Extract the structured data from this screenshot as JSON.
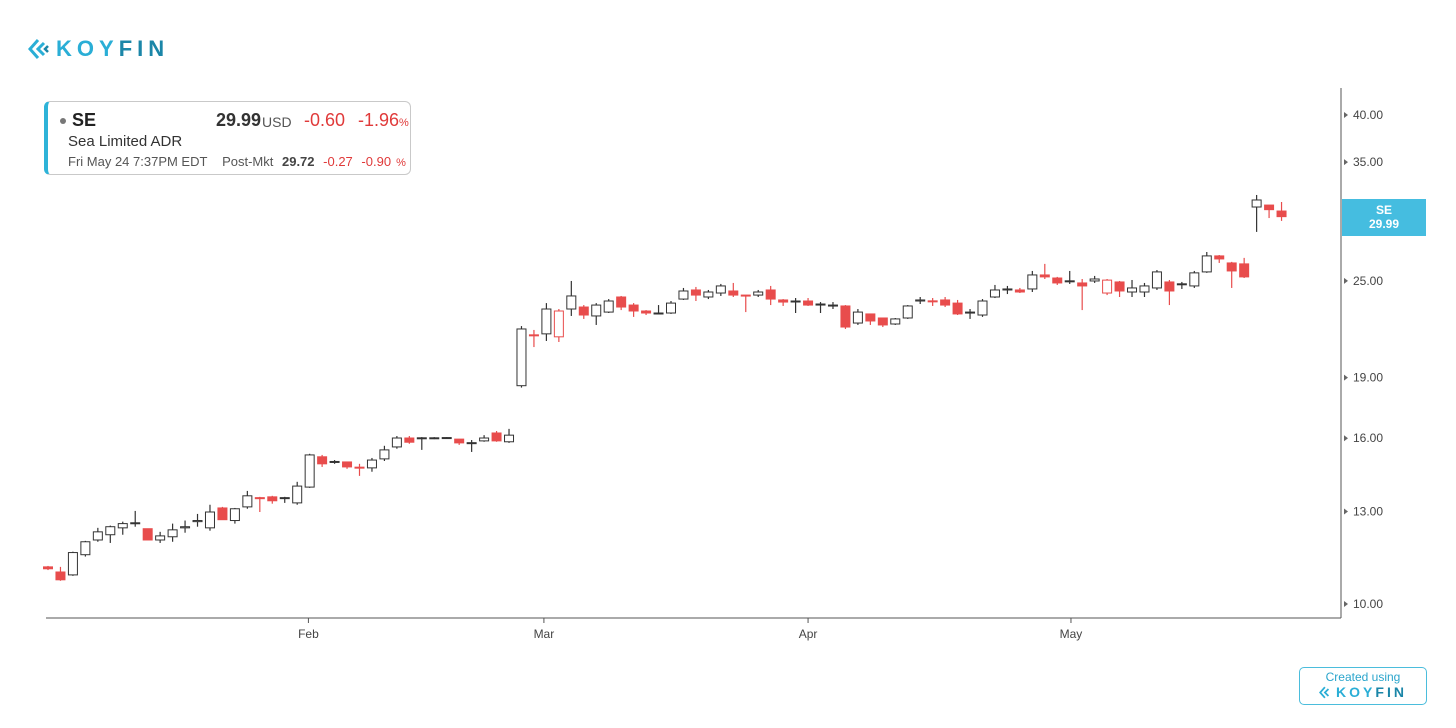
{
  "brand": {
    "logo_left": "KOY",
    "logo_right": "FIN"
  },
  "legend": {
    "ticker": "SE",
    "price": "29.99",
    "currency": "USD",
    "change": "-0.60",
    "change_pct": "-1.96",
    "pct_sign": "%",
    "name": "Sea Limited ADR",
    "datetime": "Fri May 24 7:37PM EDT",
    "post_label": "Post-Mkt",
    "post_price": "29.72",
    "post_change": "-0.27",
    "post_change_pct": "-0.90"
  },
  "badge": {
    "ticker": "SE",
    "price": "29.99"
  },
  "footer": {
    "created": "Created using",
    "logo_left": "KOY",
    "logo_right": "FIN"
  },
  "colors": {
    "up": "#333333",
    "down": "#e84c4c",
    "accent": "#45bde0"
  },
  "chart_data": {
    "type": "candlestick",
    "title": "SE",
    "yscale": "log",
    "ylim": [
      9.7,
      42
    ],
    "y_ticks": [
      "10.00",
      "13.00",
      "16.00",
      "19.00",
      "25.00",
      "30.00",
      "35.00",
      "40.00"
    ],
    "x_labels": [
      {
        "label": "Feb",
        "at_index": 20.9
      },
      {
        "label": "Mar",
        "at_index": 39.8
      },
      {
        "label": "Apr",
        "at_index": 61.0
      },
      {
        "label": "May",
        "at_index": 82.1
      }
    ],
    "ohlc_fields": [
      "open",
      "high",
      "low",
      "close"
    ],
    "candles": [
      [
        11.11,
        11.14,
        11.01,
        11.05
      ],
      [
        10.95,
        11.11,
        10.68,
        10.71
      ],
      [
        10.86,
        11.6,
        10.83,
        11.57
      ],
      [
        11.5,
        11.96,
        11.44,
        11.93
      ],
      [
        11.99,
        12.41,
        11.93,
        12.27
      ],
      [
        12.17,
        12.49,
        11.89,
        12.45
      ],
      [
        12.41,
        12.63,
        12.17,
        12.56
      ],
      [
        12.56,
        13.02,
        12.45,
        12.59
      ],
      [
        12.38,
        12.38,
        11.99,
        11.99
      ],
      [
        11.99,
        12.27,
        11.89,
        12.13
      ],
      [
        12.1,
        12.56,
        11.93,
        12.34
      ],
      [
        12.41,
        12.67,
        12.24,
        12.45
      ],
      [
        12.63,
        12.91,
        12.45,
        12.67
      ],
      [
        12.41,
        13.25,
        12.31,
        12.98
      ],
      [
        13.13,
        13.17,
        12.7,
        12.7
      ],
      [
        12.67,
        13.13,
        12.56,
        13.1
      ],
      [
        13.17,
        13.78,
        13.1,
        13.59
      ],
      [
        13.52,
        13.55,
        12.98,
        13.48
      ],
      [
        13.55,
        13.59,
        13.29,
        13.4
      ],
      [
        13.52,
        13.55,
        13.32,
        13.52
      ],
      [
        13.32,
        14.14,
        13.25,
        13.97
      ],
      [
        13.93,
        15.31,
        13.9,
        15.26
      ],
      [
        15.18,
        15.26,
        14.75,
        14.88
      ],
      [
        14.98,
        15.04,
        14.88,
        14.98
      ],
      [
        14.96,
        14.96,
        14.67,
        14.75
      ],
      [
        14.74,
        14.88,
        14.38,
        14.72
      ],
      [
        14.71,
        15.13,
        14.55,
        15.04
      ],
      [
        15.09,
        15.66,
        15.0,
        15.48
      ],
      [
        15.61,
        16.1,
        15.53,
        16.01
      ],
      [
        16.01,
        16.1,
        15.75,
        15.82
      ],
      [
        16.01,
        16.05,
        15.48,
        16.02
      ],
      [
        16.02,
        16.05,
        15.96,
        16.02
      ],
      [
        16.02,
        16.05,
        16.0,
        16.03
      ],
      [
        15.96,
        15.96,
        15.7,
        15.79
      ],
      [
        15.79,
        15.92,
        15.39,
        15.8
      ],
      [
        15.88,
        16.14,
        15.84,
        16.01
      ],
      [
        16.24,
        16.33,
        15.84,
        15.88
      ],
      [
        15.84,
        16.43,
        15.79,
        16.14
      ],
      [
        18.57,
        21.99,
        18.47,
        21.81
      ],
      [
        21.45,
        21.75,
        20.72,
        21.4
      ],
      [
        21.51,
        23.47,
        21.08,
        23.08
      ],
      [
        21.33,
        23.08,
        21.02,
        22.95
      ],
      [
        23.08,
        24.99,
        22.63,
        23.95
      ],
      [
        23.21,
        23.34,
        22.44,
        22.69
      ],
      [
        22.63,
        23.47,
        22.06,
        23.34
      ],
      [
        22.88,
        23.74,
        22.82,
        23.61
      ],
      [
        23.88,
        23.95,
        23.01,
        23.21
      ],
      [
        23.34,
        23.47,
        22.57,
        22.95
      ],
      [
        22.95,
        23.01,
        22.69,
        22.82
      ],
      [
        22.76,
        23.34,
        22.76,
        22.82
      ],
      [
        22.82,
        23.61,
        22.76,
        23.47
      ],
      [
        23.74,
        24.5,
        23.68,
        24.29
      ],
      [
        24.36,
        24.57,
        23.61,
        24.01
      ],
      [
        23.88,
        24.36,
        23.74,
        24.22
      ],
      [
        24.15,
        24.78,
        23.95,
        24.64
      ],
      [
        24.29,
        24.85,
        23.88,
        24.01
      ],
      [
        24.01,
        24.01,
        22.88,
        23.95
      ],
      [
        24.01,
        24.36,
        23.88,
        24.22
      ],
      [
        24.36,
        24.64,
        23.34,
        23.74
      ],
      [
        23.68,
        23.74,
        23.28,
        23.54
      ],
      [
        23.61,
        23.81,
        22.82,
        23.59
      ],
      [
        23.61,
        23.81,
        23.28,
        23.34
      ],
      [
        23.41,
        23.54,
        22.82,
        23.34
      ],
      [
        23.34,
        23.54,
        23.08,
        23.34
      ],
      [
        23.28,
        23.34,
        21.81,
        21.93
      ],
      [
        22.18,
        23.08,
        22.06,
        22.88
      ],
      [
        22.76,
        22.76,
        22.06,
        22.31
      ],
      [
        22.5,
        22.5,
        21.93,
        22.06
      ],
      [
        22.12,
        22.5,
        22.06,
        22.44
      ],
      [
        22.5,
        23.34,
        22.44,
        23.28
      ],
      [
        23.61,
        23.88,
        23.41,
        23.68
      ],
      [
        23.61,
        23.81,
        23.28,
        23.62
      ],
      [
        23.68,
        23.88,
        23.21,
        23.34
      ],
      [
        23.47,
        23.68,
        22.69,
        22.76
      ],
      [
        22.82,
        23.08,
        22.44,
        22.88
      ],
      [
        22.69,
        23.74,
        22.57,
        23.61
      ],
      [
        23.88,
        24.71,
        23.81,
        24.36
      ],
      [
        24.36,
        24.64,
        24.08,
        24.43
      ],
      [
        24.36,
        24.5,
        24.15,
        24.22
      ],
      [
        24.43,
        25.71,
        24.22,
        25.42
      ],
      [
        25.42,
        26.23,
        25.13,
        25.28
      ],
      [
        25.2,
        25.28,
        24.71,
        24.85
      ],
      [
        24.99,
        25.71,
        24.78,
        25.0
      ],
      [
        24.85,
        25.13,
        23.01,
        24.64
      ],
      [
        24.99,
        25.35,
        24.85,
        25.13
      ],
      [
        24.15,
        25.13,
        24.01,
        25.05
      ],
      [
        24.92,
        24.99,
        23.88,
        24.29
      ],
      [
        24.22,
        25.06,
        23.88,
        24.5
      ],
      [
        24.22,
        24.85,
        23.88,
        24.64
      ],
      [
        24.5,
        25.78,
        24.36,
        25.64
      ],
      [
        24.92,
        25.06,
        23.34,
        24.29
      ],
      [
        24.78,
        24.92,
        24.43,
        24.79
      ],
      [
        24.64,
        25.71,
        24.5,
        25.57
      ],
      [
        25.64,
        27.13,
        25.57,
        26.83
      ],
      [
        26.83,
        26.9,
        26.3,
        26.6
      ],
      [
        26.3,
        26.38,
        24.5,
        25.71
      ],
      [
        26.23,
        26.68,
        25.2,
        25.28
      ],
      [
        30.82,
        31.89,
        28.72,
        31.44
      ],
      [
        30.99,
        30.99,
        29.87,
        30.59
      ],
      [
        30.47,
        31.26,
        29.63,
        29.99
      ]
    ]
  }
}
